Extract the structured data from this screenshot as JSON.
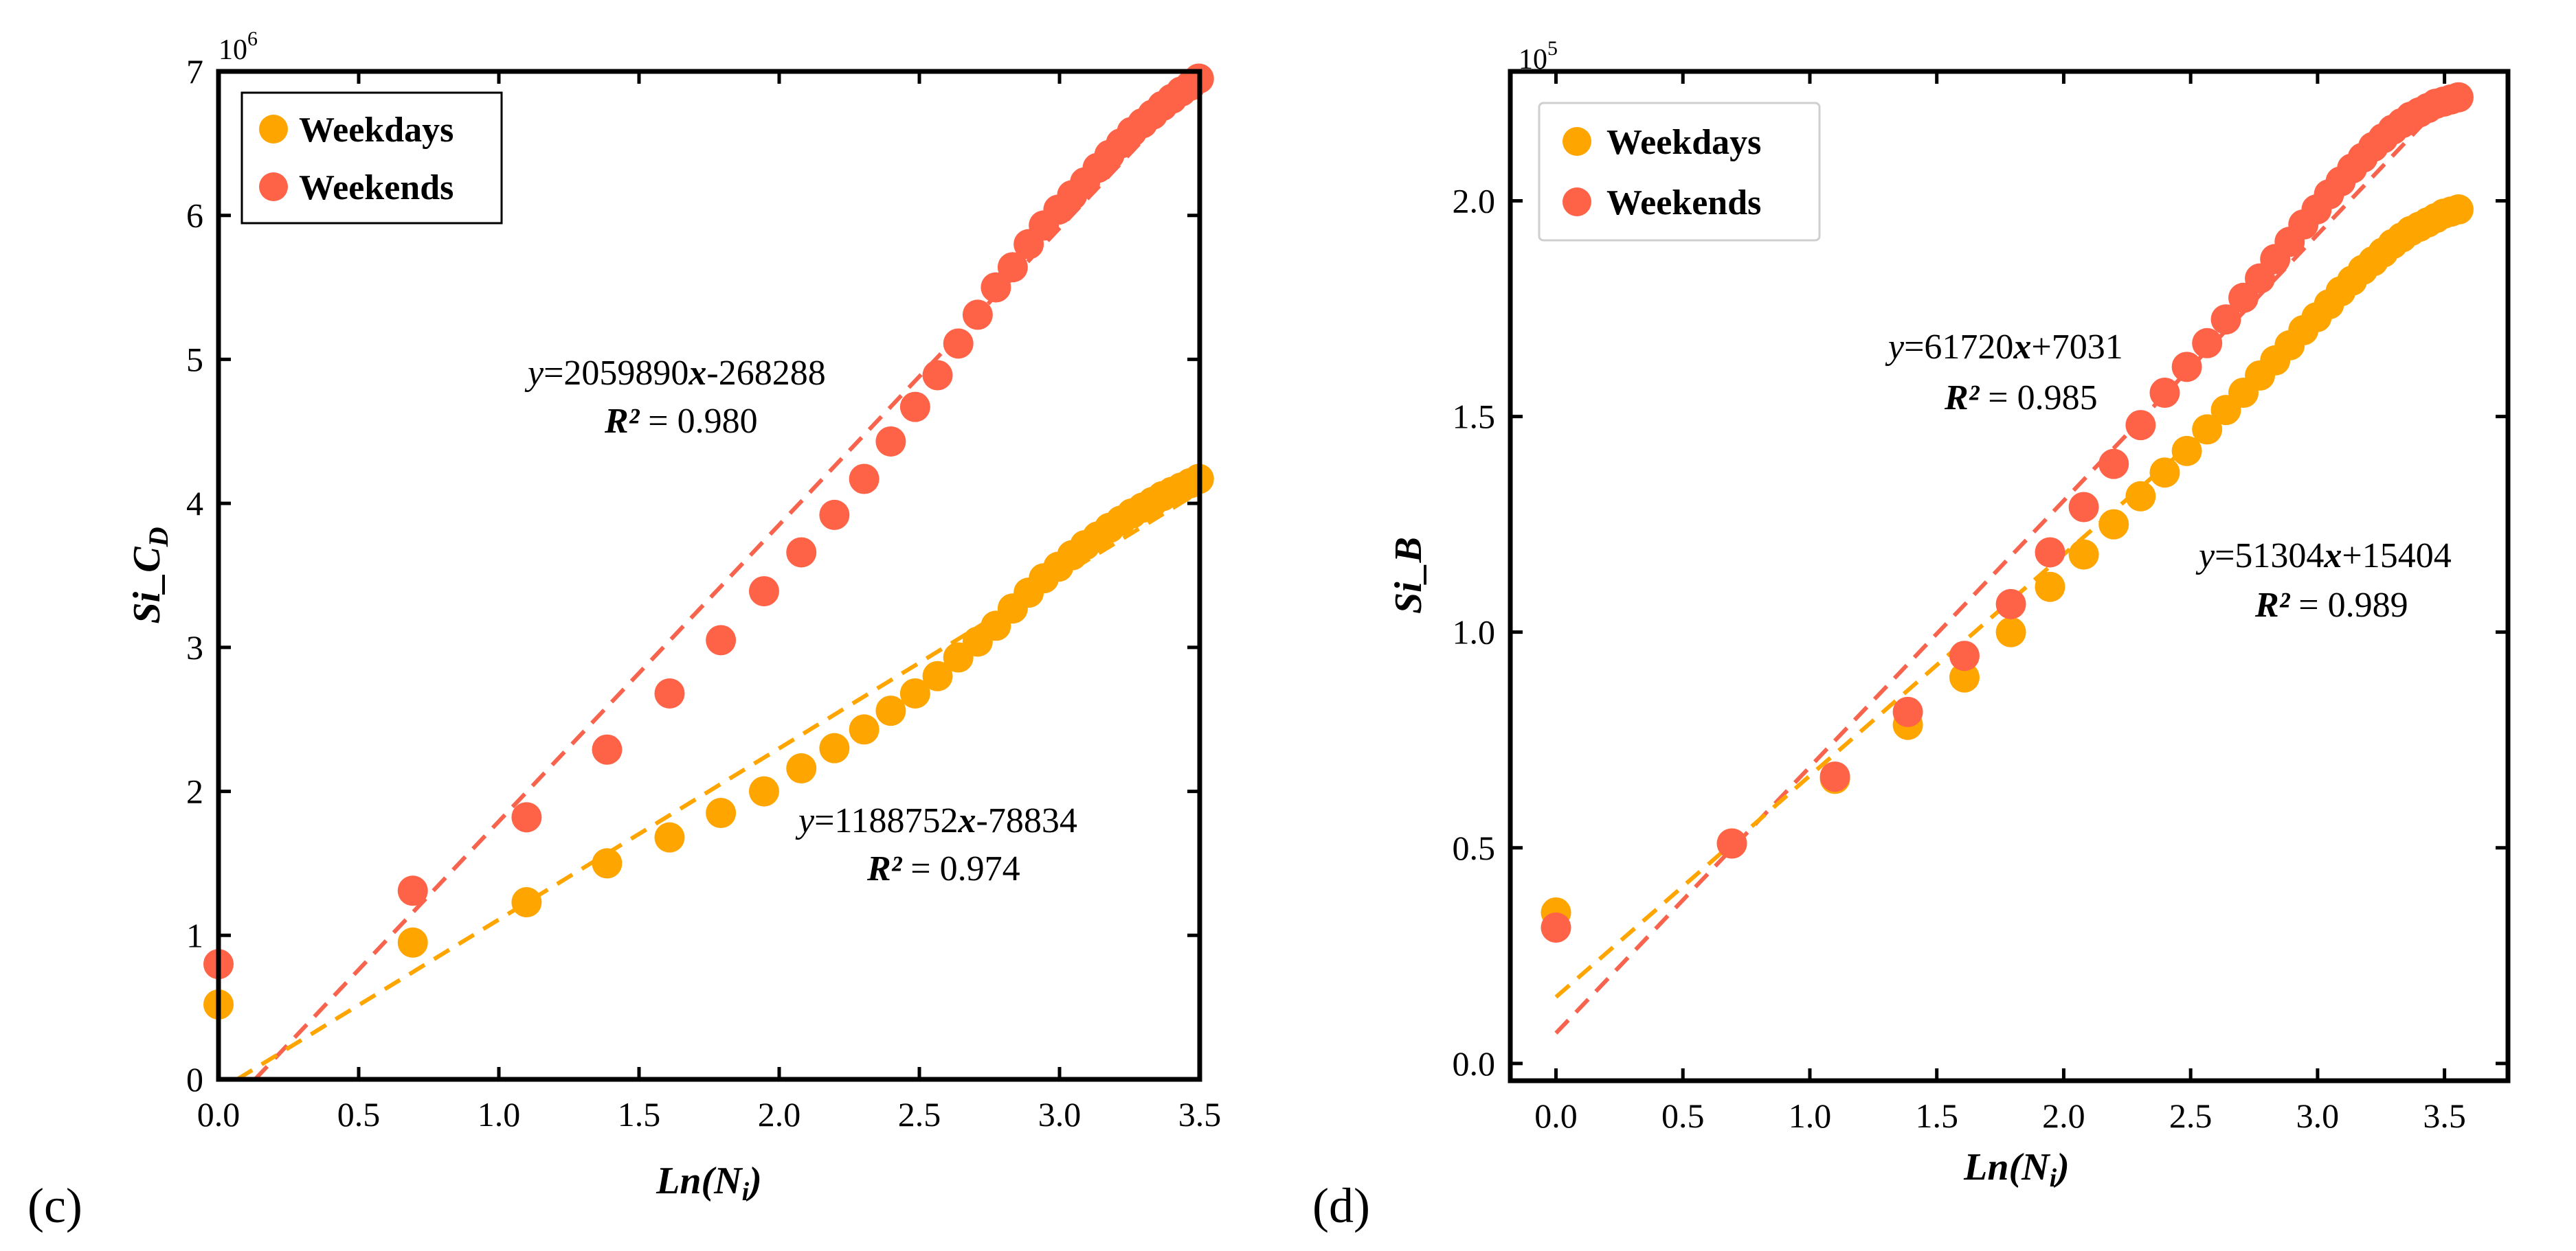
{
  "colors": {
    "weekdays": "#ffa500",
    "weekends": "#ff6347",
    "weekdays_line": "#ffa500",
    "weekends_line": "#f7634d"
  },
  "chart_data": [
    {
      "type": "scatter",
      "panel_label": "(c)",
      "xlabel": "Ln(N",
      "xlabel_sub": "i",
      "xlabel_close": ")",
      "ylabel_main": "Si_C",
      "ylabel_sub": "D",
      "exponent_base": "10",
      "exponent_power": "6",
      "xlim": [
        0,
        3.5
      ],
      "ylim": [
        0,
        7000000
      ],
      "xticks": [
        0.0,
        0.5,
        1.0,
        1.5,
        2.0,
        2.5,
        3.0,
        3.5
      ],
      "xtick_labels": [
        "0.0",
        "0.5",
        "1.0",
        "1.5",
        "2.0",
        "2.5",
        "3.0",
        "3.5"
      ],
      "yticks": [
        0,
        1000000,
        2000000,
        3000000,
        4000000,
        5000000,
        6000000,
        7000000
      ],
      "ytick_labels": [
        "0",
        "1",
        "2",
        "3",
        "4",
        "5",
        "6",
        "7"
      ],
      "legend_position": "top-left",
      "series": [
        {
          "name": "Weekdays",
          "color_key": "weekdays",
          "x": [
            0.0,
            0.693,
            1.099,
            1.386,
            1.609,
            1.792,
            1.946,
            2.079,
            2.197,
            2.303,
            2.398,
            2.485,
            2.565,
            2.639,
            2.708,
            2.773,
            2.833,
            2.89,
            2.944,
            2.996,
            3.045,
            3.091,
            3.136,
            3.178,
            3.219,
            3.258,
            3.296,
            3.332,
            3.367,
            3.401,
            3.434,
            3.466,
            3.497
          ],
          "y": [
            520000,
            950000,
            1230000,
            1500000,
            1680000,
            1850000,
            2000000,
            2160000,
            2300000,
            2430000,
            2560000,
            2680000,
            2800000,
            2930000,
            3040000,
            3150000,
            3270000,
            3380000,
            3480000,
            3560000,
            3640000,
            3710000,
            3770000,
            3830000,
            3880000,
            3930000,
            3970000,
            4010000,
            4050000,
            4080000,
            4110000,
            4140000,
            4170000
          ]
        },
        {
          "name": "Weekends",
          "color_key": "weekends",
          "x": [
            0.0,
            0.693,
            1.099,
            1.386,
            1.609,
            1.792,
            1.946,
            2.079,
            2.197,
            2.303,
            2.398,
            2.485,
            2.565,
            2.639,
            2.708,
            2.773,
            2.833,
            2.89,
            2.944,
            2.996,
            3.045,
            3.091,
            3.136,
            3.178,
            3.219,
            3.258,
            3.296,
            3.332,
            3.367,
            3.401,
            3.434,
            3.466,
            3.497
          ],
          "y": [
            800000,
            1310000,
            1820000,
            2290000,
            2680000,
            3050000,
            3390000,
            3660000,
            3920000,
            4170000,
            4430000,
            4670000,
            4890000,
            5110000,
            5310000,
            5500000,
            5640000,
            5800000,
            5930000,
            6040000,
            6140000,
            6230000,
            6330000,
            6420000,
            6500000,
            6580000,
            6640000,
            6700000,
            6760000,
            6810000,
            6860000,
            6900000,
            6950000
          ]
        }
      ],
      "fits": [
        {
          "series": "Weekends",
          "color_key": "weekends_line",
          "slope": 2059890,
          "intercept": -268288,
          "x_range": [
            0.13,
            3.5
          ],
          "eq_pre": "y",
          "eq_mid": "=2059890",
          "eq_var": "x",
          "eq_post": "-268288",
          "r2_label": "R²",
          "r2_value": " = 0.980"
        },
        {
          "series": "Weekdays",
          "color_key": "weekdays_line",
          "slope": 1188752,
          "intercept": -78834,
          "x_range": [
            0.066,
            3.5
          ],
          "eq_pre": "y",
          "eq_mid": "=1188752",
          "eq_var": "x",
          "eq_post": "-78834",
          "r2_label": "R²",
          "r2_value": " = 0.974"
        }
      ]
    },
    {
      "type": "scatter",
      "panel_label": "(d)",
      "xlabel": "Ln(N",
      "xlabel_sub": "i",
      "xlabel_close": ")",
      "ylabel_main": "Si_B",
      "ylabel_sub": "",
      "exponent_base": "10",
      "exponent_power": "5",
      "xlim": [
        -0.18,
        3.75
      ],
      "ylim": [
        -4000,
        230000
      ],
      "xticks": [
        0.0,
        0.5,
        1.0,
        1.5,
        2.0,
        2.5,
        3.0,
        3.5
      ],
      "xtick_labels": [
        "0.0",
        "0.5",
        "1.0",
        "1.5",
        "2.0",
        "2.5",
        "3.0",
        "3.5"
      ],
      "yticks": [
        0,
        50000,
        100000,
        150000,
        200000
      ],
      "ytick_labels": [
        "0.0",
        "0.5",
        "1.0",
        "1.5",
        "2.0"
      ],
      "legend_position": "top-left",
      "series": [
        {
          "name": "Weekdays",
          "color_key": "weekdays",
          "x": [
            0.0,
            0.693,
            1.099,
            1.386,
            1.609,
            1.792,
            1.946,
            2.079,
            2.197,
            2.303,
            2.398,
            2.485,
            2.565,
            2.639,
            2.708,
            2.773,
            2.833,
            2.89,
            2.944,
            2.996,
            3.045,
            3.091,
            3.136,
            3.178,
            3.219,
            3.258,
            3.296,
            3.332,
            3.367,
            3.401,
            3.434,
            3.466,
            3.497,
            3.526,
            3.555
          ],
          "y": [
            35000,
            51000,
            66000,
            78500,
            89500,
            100000,
            110500,
            118000,
            125000,
            131500,
            137000,
            142000,
            147000,
            151500,
            155500,
            159500,
            163000,
            166500,
            170000,
            173000,
            176000,
            179000,
            181500,
            184000,
            186000,
            188000,
            190000,
            191500,
            193000,
            194000,
            195000,
            196000,
            197000,
            197500,
            198000
          ]
        },
        {
          "name": "Weekends",
          "color_key": "weekends",
          "x": [
            0.0,
            0.693,
            1.099,
            1.386,
            1.609,
            1.792,
            1.946,
            2.079,
            2.197,
            2.303,
            2.398,
            2.485,
            2.565,
            2.639,
            2.708,
            2.773,
            2.833,
            2.89,
            2.944,
            2.996,
            3.045,
            3.091,
            3.136,
            3.178,
            3.219,
            3.258,
            3.296,
            3.332,
            3.367,
            3.401,
            3.434,
            3.466,
            3.497,
            3.526,
            3.555
          ],
          "y": [
            31500,
            51000,
            66500,
            81500,
            94500,
            106500,
            118500,
            129000,
            139000,
            148000,
            155500,
            161500,
            167000,
            172500,
            177500,
            182000,
            186500,
            190500,
            194500,
            198000,
            201500,
            204500,
            207500,
            210000,
            212500,
            214500,
            216500,
            218000,
            219500,
            220500,
            221500,
            222500,
            223000,
            223500,
            224000
          ]
        }
      ],
      "fits": [
        {
          "series": "Weekends",
          "color_key": "weekends_line",
          "slope": 61720,
          "intercept": 7031,
          "x_range": [
            0.0,
            3.5
          ],
          "eq_pre": "y",
          "eq_mid": "=61720",
          "eq_var": "x",
          "eq_post": "+7031",
          "r2_label": "R²",
          "r2_value": " = 0.985"
        },
        {
          "series": "Weekdays",
          "color_key": "weekdays_line",
          "slope": 51304,
          "intercept": 15404,
          "x_range": [
            0.0,
            2.6
          ],
          "eq_pre": "y",
          "eq_mid": "=51304",
          "eq_var": "x",
          "eq_post": "+15404",
          "r2_label": "R²",
          "r2_value": " = 0.989"
        }
      ]
    }
  ]
}
